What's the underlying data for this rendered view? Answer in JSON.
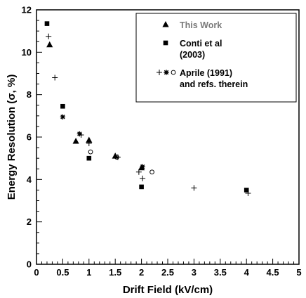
{
  "chart_data": {
    "type": "scatter",
    "xlabel": "Drift Field  (kV/cm)",
    "ylabel": "Energy Resolution  (σ, %)",
    "xlim": [
      0,
      5
    ],
    "ylim": [
      0,
      12
    ],
    "x_ticks": [
      "0",
      "0.5",
      "1",
      "1.5",
      "2",
      "2.5",
      "3",
      "3.5",
      "4",
      "4.5",
      "5"
    ],
    "y_ticks": [
      "0",
      "2",
      "4",
      "6",
      "8",
      "10",
      "12"
    ],
    "grid": false,
    "legend_position": "top-right",
    "legend": [
      {
        "lines": [
          "This Work"
        ],
        "markers": [
          "triangle"
        ],
        "color": "#7a7a7a"
      },
      {
        "lines": [
          "Conti et al",
          "(2003)"
        ],
        "markers": [
          "square"
        ],
        "color": "#000000"
      },
      {
        "lines": [
          "Aprile (1991)",
          "and refs. therein"
        ],
        "markers": [
          "plus",
          "star",
          "circle"
        ],
        "color": "#000000"
      }
    ],
    "series": [
      {
        "marker": "triangle",
        "x": [
          0.25,
          0.75,
          1.0,
          1.5,
          2.0
        ],
        "y": [
          10.35,
          5.8,
          5.85,
          5.1,
          4.55
        ]
      },
      {
        "marker": "square",
        "x": [
          0.2,
          0.5,
          1.0,
          2.0,
          4.0
        ],
        "y": [
          11.35,
          7.45,
          5.0,
          3.65,
          3.5
        ]
      },
      {
        "marker": "plus",
        "x": [
          0.23,
          0.35,
          0.85,
          1.0,
          1.55,
          1.95,
          2.02,
          3.0,
          4.03
        ],
        "y": [
          10.75,
          8.8,
          6.1,
          5.7,
          5.05,
          4.35,
          4.05,
          3.6,
          3.35
        ]
      },
      {
        "marker": "star",
        "x": [
          0.5,
          0.82,
          2.02
        ],
        "y": [
          6.95,
          6.15,
          4.6
        ]
      },
      {
        "marker": "circle",
        "x": [
          1.03,
          1.53,
          2.2
        ],
        "y": [
          5.3,
          5.05,
          4.35
        ]
      }
    ]
  }
}
